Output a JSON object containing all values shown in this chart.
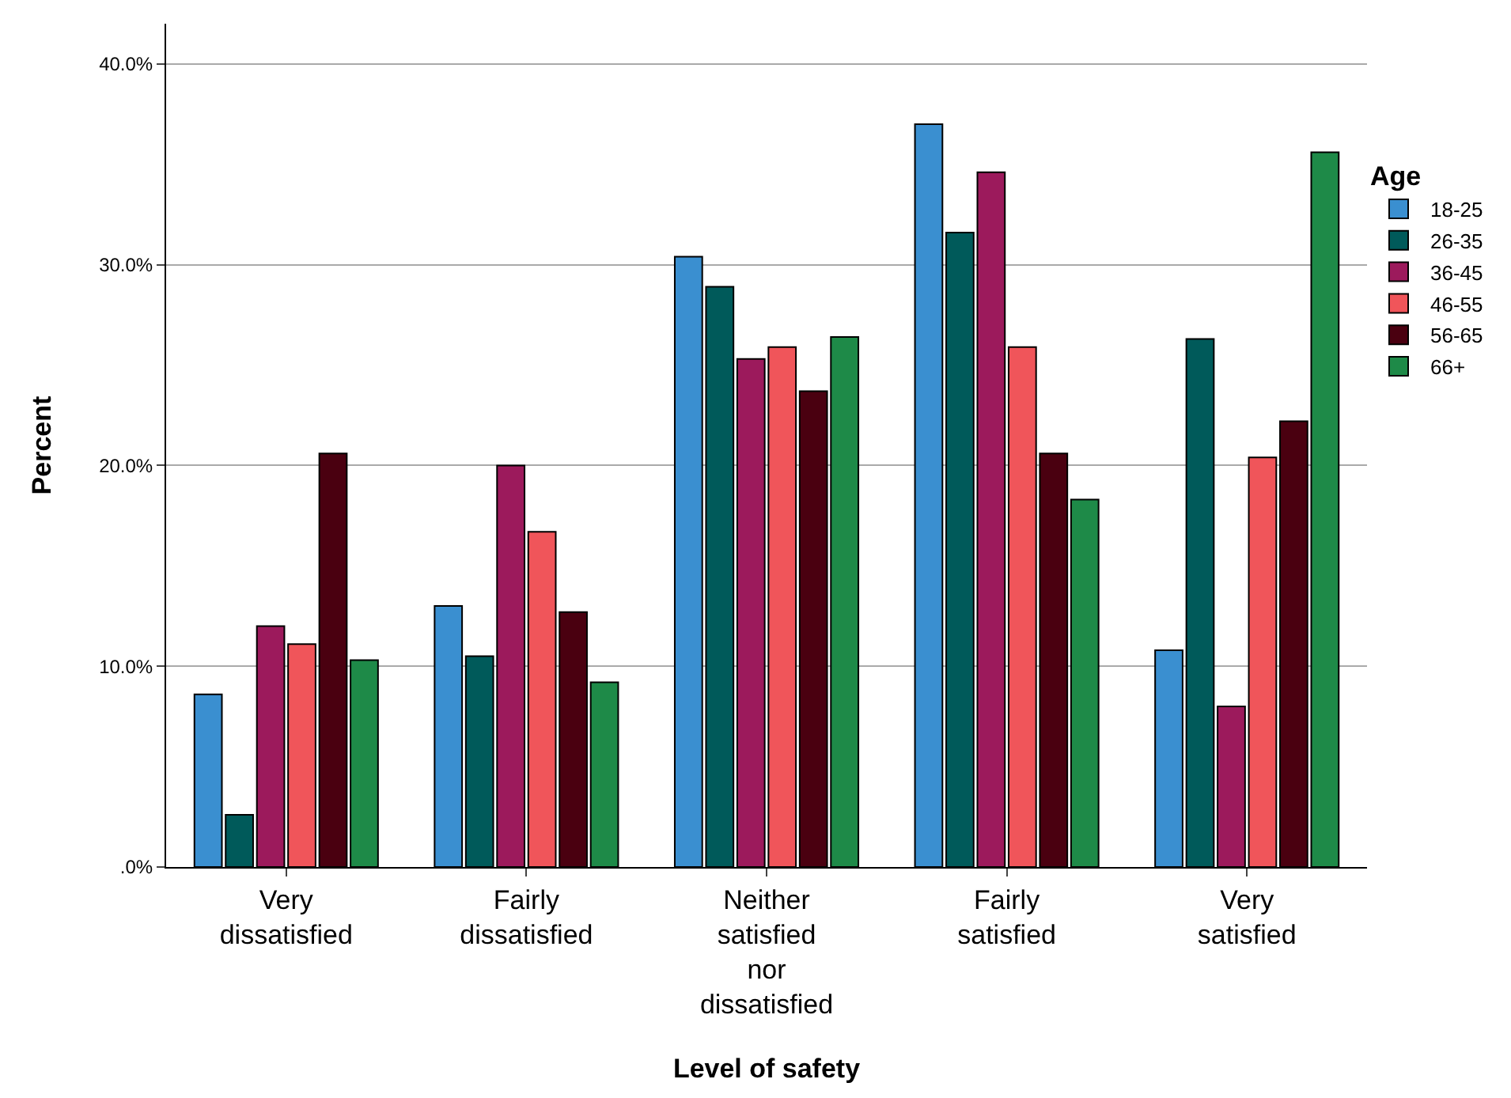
{
  "chart_data": {
    "type": "bar",
    "xlabel": "Level of safety",
    "ylabel": "Percent",
    "legend_title": "Age",
    "legend": "right",
    "categories": [
      "Very dissatisfied",
      "Fairly dissatisfied",
      "Neither satisfied nor dissatisfied",
      "Fairly satisfied",
      "Very satisfied"
    ],
    "series": [
      {
        "name": "18-25",
        "color": "#3a8fd0",
        "values": [
          8.6,
          13.0,
          30.4,
          37.0,
          10.8
        ]
      },
      {
        "name": "26-35",
        "color": "#005a5a",
        "values": [
          2.6,
          10.5,
          28.9,
          31.6,
          26.3
        ]
      },
      {
        "name": "36-45",
        "color": "#9c1a5c",
        "values": [
          12.0,
          20.0,
          25.3,
          34.6,
          8.0
        ]
      },
      {
        "name": "46-55",
        "color": "#f0555a",
        "values": [
          11.1,
          16.7,
          25.9,
          25.9,
          20.4
        ]
      },
      {
        "name": "56-65",
        "color": "#4a0010",
        "values": [
          20.6,
          12.7,
          23.7,
          20.6,
          22.2
        ]
      },
      {
        "name": "66+",
        "color": "#1e8a48",
        "values": [
          10.3,
          9.2,
          26.4,
          18.3,
          35.6
        ]
      }
    ],
    "ylim": [
      0,
      42
    ],
    "yticks": [
      {
        "value": 0,
        "label": ".0%"
      },
      {
        "value": 10,
        "label": "10.0%"
      },
      {
        "value": 20,
        "label": "20.0%"
      },
      {
        "value": 30,
        "label": "30.0%"
      },
      {
        "value": 40,
        "label": "40.0%"
      }
    ],
    "grid": "y"
  }
}
